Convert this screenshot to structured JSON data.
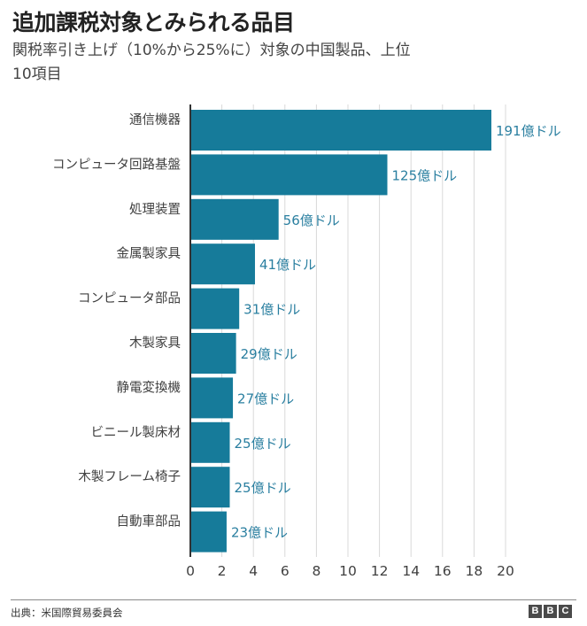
{
  "title": "追加課税対象とみられる品目",
  "subtitle": "関税率引き上げ（10%から25%に）対象の中国製品、上位10項目",
  "footer": {
    "source": "出典：米国際貿易委員会",
    "logo_letters": [
      "B",
      "B",
      "C"
    ]
  },
  "colors": {
    "bar": "#167b9a",
    "value_label": "#2a7fa0",
    "grid": "#d9d9d9",
    "axis": "#333333"
  },
  "chart_data": {
    "type": "bar",
    "orientation": "horizontal",
    "title": "追加課税対象とみられる品目",
    "subtitle": "関税率引き上げ（10%から25%に）対象の中国製品、上位10項目",
    "xlabel": "",
    "ylabel": "",
    "unit": "十億ドル",
    "xlim": [
      0,
      20
    ],
    "xticks": [
      0,
      2,
      4,
      6,
      8,
      10,
      12,
      14,
      16,
      18,
      20
    ],
    "grid": true,
    "categories": [
      "通信機器",
      "コンピュータ回路基盤",
      "処理装置",
      "金属製家具",
      "コンピュータ部品",
      "木製家具",
      "静電変換機",
      "ビニール製床材",
      "木製フレーム椅子",
      "自動車部品"
    ],
    "values": [
      19.1,
      12.5,
      5.6,
      4.1,
      3.1,
      2.9,
      2.7,
      2.5,
      2.5,
      2.3
    ],
    "data_labels": [
      "191億ドル",
      "125億ドル",
      "56億ドル",
      "41億ドル",
      "31億ドル",
      "29億ドル",
      "27億ドル",
      "25億ドル",
      "25億ドル",
      "23億ドル"
    ]
  }
}
